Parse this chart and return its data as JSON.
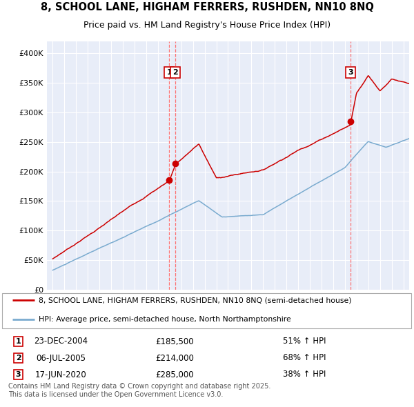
{
  "title_line1": "8, SCHOOL LANE, HIGHAM FERRERS, RUSHDEN, NN10 8NQ",
  "title_line2": "Price paid vs. HM Land Registry's House Price Index (HPI)",
  "plot_bg_color": "#e8edf8",
  "line1_color": "#cc0000",
  "line2_color": "#7aabcf",
  "vline_color": "#ff6666",
  "sales": [
    {
      "num": 1,
      "date_x": 2004.98,
      "price": 185500,
      "label": "1",
      "pct": "51% ↑ HPI",
      "date_str": "23-DEC-2004"
    },
    {
      "num": 2,
      "date_x": 2005.51,
      "price": 214000,
      "label": "2",
      "pct": "68% ↑ HPI",
      "date_str": "06-JUL-2005"
    },
    {
      "num": 3,
      "date_x": 2020.46,
      "price": 285000,
      "label": "3",
      "pct": "38% ↑ HPI",
      "date_str": "17-JUN-2020"
    }
  ],
  "ylim": [
    0,
    420000
  ],
  "xlim": [
    1994.5,
    2025.5
  ],
  "yticks": [
    0,
    50000,
    100000,
    150000,
    200000,
    250000,
    300000,
    350000,
    400000
  ],
  "ytick_labels": [
    "£0",
    "£50K",
    "£100K",
    "£150K",
    "£200K",
    "£250K",
    "£300K",
    "£350K",
    "£400K"
  ],
  "legend_label1": "8, SCHOOL LANE, HIGHAM FERRERS, RUSHDEN, NN10 8NQ (semi-detached house)",
  "legend_label2": "HPI: Average price, semi-detached house, North Northamptonshire",
  "footer": "Contains HM Land Registry data © Crown copyright and database right 2025.\nThis data is licensed under the Open Government Licence v3.0."
}
